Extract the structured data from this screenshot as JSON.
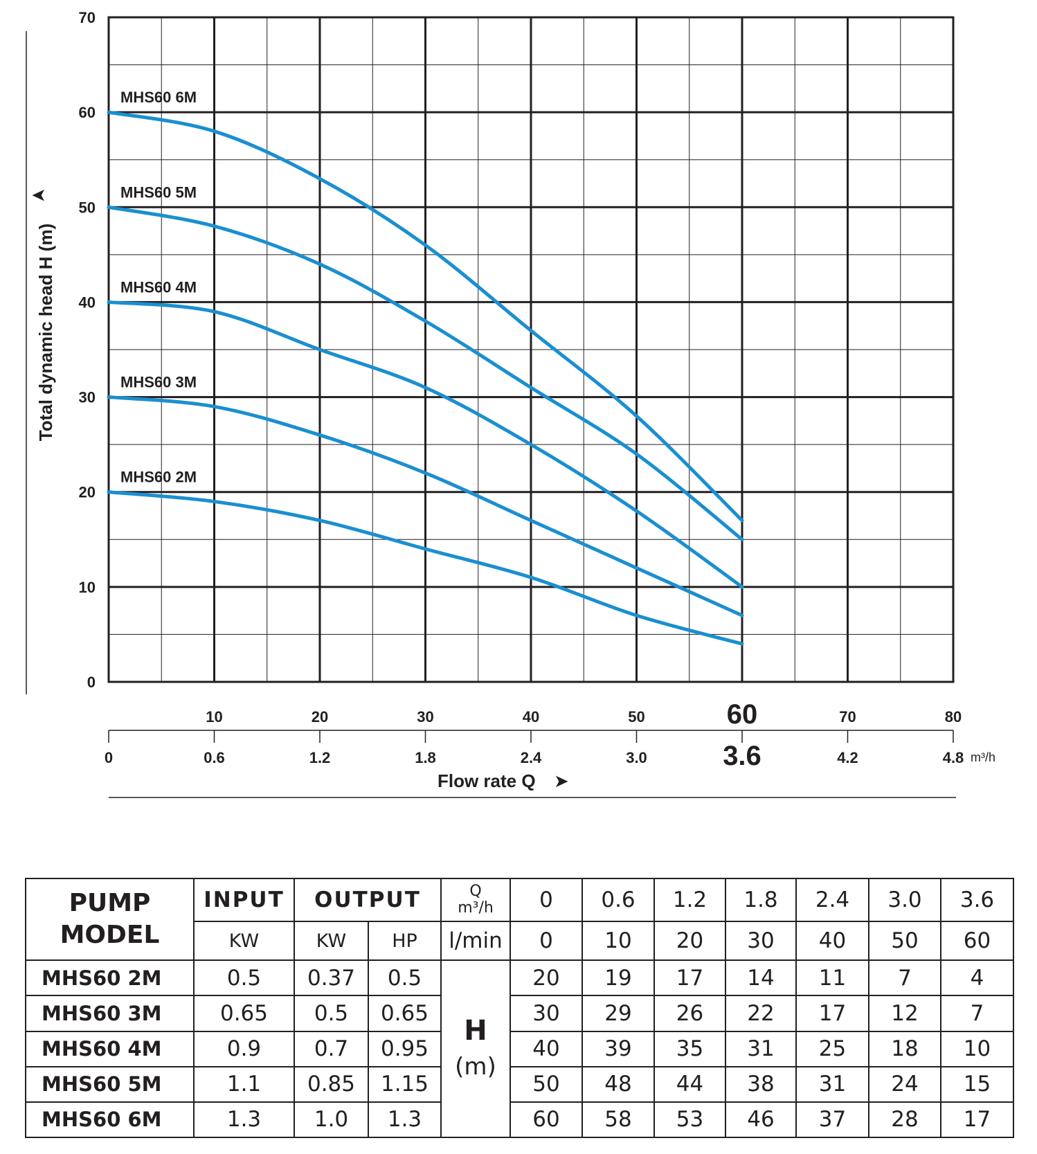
{
  "chart_data": {
    "type": "line",
    "ylabel": "Total dynamic head H (m)",
    "ylabel_arrow": "➤",
    "xlabel": "Flow rate Q",
    "xlabel_arrow": "➤",
    "ylim": [
      0,
      70
    ],
    "y_ticks": [
      "0",
      "10",
      "20",
      "30",
      "40",
      "50",
      "60",
      "70"
    ],
    "x_ticks_lmin": [
      "10",
      "20",
      "30",
      "40",
      "50",
      "60",
      "70",
      "80"
    ],
    "x_ticks_m3h": [
      "0",
      "0.6",
      "1.2",
      "1.8",
      "2.4",
      "3.0",
      "3.6",
      "4.2",
      "4.8"
    ],
    "x_highlight_lmin": "60",
    "x_highlight_m3h": "3.6",
    "x_unit": "m³/h",
    "xlim_lmin": [
      0,
      80
    ],
    "grid": true,
    "line_color": "#1a8fd0",
    "x": [
      0,
      10,
      20,
      30,
      40,
      50,
      60
    ],
    "series": [
      {
        "name": "MHS60 2M",
        "values": [
          20,
          19,
          17,
          14,
          11,
          7,
          4
        ]
      },
      {
        "name": "MHS60 3M",
        "values": [
          30,
          29,
          26,
          22,
          17,
          12,
          7
        ]
      },
      {
        "name": "MHS60 4M",
        "values": [
          40,
          39,
          35,
          31,
          25,
          18,
          10
        ]
      },
      {
        "name": "MHS60 5M",
        "values": [
          50,
          48,
          44,
          38,
          31,
          24,
          15
        ]
      },
      {
        "name": "MHS60 6M",
        "values": [
          60,
          58,
          53,
          46,
          37,
          28,
          17
        ]
      }
    ]
  },
  "table": {
    "pump_model_line1": "PUMP",
    "pump_model_line2": "MODEL",
    "input_label": "INPUT",
    "output_label": "OUTPUT",
    "q_label": "Q",
    "q_unit": "m³/h",
    "input_unit": "KW",
    "output_unit_kw": "KW",
    "output_unit_hp": "HP",
    "lmin_label": "l/min",
    "q_m3h": [
      "0",
      "0.6",
      "1.2",
      "1.8",
      "2.4",
      "3.0",
      "3.6"
    ],
    "q_lmin": [
      "0",
      "10",
      "20",
      "30",
      "40",
      "50",
      "60"
    ],
    "h_label": "H",
    "h_unit": "(m)",
    "rows": [
      {
        "model": "MHS60 2M",
        "input_kw": "0.5",
        "output_kw": "0.37",
        "output_hp": "0.5",
        "head": [
          "20",
          "19",
          "17",
          "14",
          "11",
          "7",
          "4"
        ]
      },
      {
        "model": "MHS60 3M",
        "input_kw": "0.65",
        "output_kw": "0.5",
        "output_hp": "0.65",
        "head": [
          "30",
          "29",
          "26",
          "22",
          "17",
          "12",
          "7"
        ]
      },
      {
        "model": "MHS60 4M",
        "input_kw": "0.9",
        "output_kw": "0.7",
        "output_hp": "0.95",
        "head": [
          "40",
          "39",
          "35",
          "31",
          "25",
          "18",
          "10"
        ]
      },
      {
        "model": "MHS60 5M",
        "input_kw": "1.1",
        "output_kw": "0.85",
        "output_hp": "1.15",
        "head": [
          "50",
          "48",
          "44",
          "38",
          "31",
          "24",
          "15"
        ]
      },
      {
        "model": "MHS60 6M",
        "input_kw": "1.3",
        "output_kw": "1.0",
        "output_hp": "1.3",
        "head": [
          "60",
          "58",
          "53",
          "46",
          "37",
          "28",
          "17"
        ]
      }
    ]
  }
}
